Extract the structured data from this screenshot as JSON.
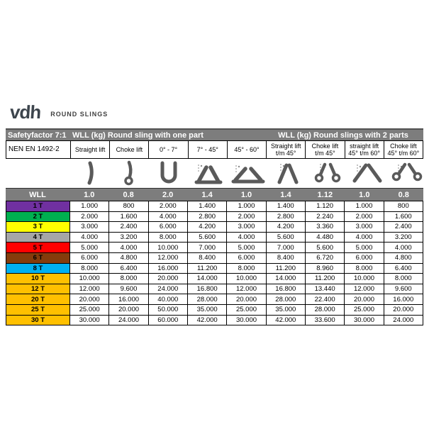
{
  "brand": {
    "logo": "vdh",
    "tagline": "ROUND SLINGS"
  },
  "table": {
    "top_header": {
      "safety": "Safetyfactor 7:1",
      "one_part": "WLL (kg) Round sling with one part",
      "two_parts": "WLL (kg) Round slings with 2 parts"
    },
    "standard": "NEN EN 1492-2",
    "columns": [
      {
        "line1": "Straight lift",
        "line2": ""
      },
      {
        "line1": "Choke lift",
        "line2": ""
      },
      {
        "line1": "0° - 7°",
        "line2": ""
      },
      {
        "line1": "7° - 45°",
        "line2": ""
      },
      {
        "line1": "45° - 60°",
        "line2": ""
      },
      {
        "line1": "Straight lift",
        "line2": "t/m 45°"
      },
      {
        "line1": "Choke lift",
        "line2": "t/m 45°"
      },
      {
        "line1": "straight lift",
        "line2": "45° t/m 60°"
      },
      {
        "line1": "Choke lift",
        "line2": "45° t/m 60°"
      }
    ],
    "icons": [
      "straight-lift-icon",
      "choke-lift-icon",
      "basket-0-7-icon",
      "basket-7-45-icon",
      "basket-45-60-icon",
      "two-part-straight-45-icon",
      "two-part-choke-45-icon",
      "two-part-straight-60-icon",
      "two-part-choke-60-icon"
    ],
    "wll_label": "WLL",
    "factors": [
      "1.0",
      "0.8",
      "2.0",
      "1.4",
      "1.0",
      "1.4",
      "1.12",
      "1.0",
      "0.8"
    ],
    "rows": [
      {
        "label": "1 T",
        "color": "#7030A0",
        "values": [
          "1.000",
          "800",
          "2.000",
          "1.400",
          "1.000",
          "1.400",
          "1.120",
          "1.000",
          "800"
        ]
      },
      {
        "label": "2 T",
        "color": "#00B050",
        "values": [
          "2.000",
          "1.600",
          "4.000",
          "2.800",
          "2.000",
          "2.800",
          "2.240",
          "2.000",
          "1.600"
        ]
      },
      {
        "label": "3 T",
        "color": "#FFFF00",
        "values": [
          "3.000",
          "2.400",
          "6.000",
          "4.200",
          "3.000",
          "4.200",
          "3.360",
          "3.000",
          "2.400"
        ]
      },
      {
        "label": "4 T",
        "color": "#A6A6A6",
        "values": [
          "4.000",
          "3.200",
          "8.000",
          "5.600",
          "4.000",
          "5.600",
          "4.480",
          "4.000",
          "3.200"
        ]
      },
      {
        "label": "5 T",
        "color": "#FF0000",
        "values": [
          "5.000",
          "4.000",
          "10.000",
          "7.000",
          "5.000",
          "7.000",
          "5.600",
          "5.000",
          "4.000"
        ]
      },
      {
        "label": "6 T",
        "color": "#843C0C",
        "values": [
          "6.000",
          "4.800",
          "12.000",
          "8.400",
          "6.000",
          "8.400",
          "6.720",
          "6.000",
          "4.800"
        ]
      },
      {
        "label": "8 T",
        "color": "#00B0F0",
        "values": [
          "8.000",
          "6.400",
          "16.000",
          "11.200",
          "8.000",
          "11.200",
          "8.960",
          "8.000",
          "6.400"
        ]
      },
      {
        "label": "10 T",
        "color": "#FFC000",
        "values": [
          "10.000",
          "8.000",
          "20.000",
          "14.000",
          "10.000",
          "14.000",
          "11.200",
          "10.000",
          "8.000"
        ]
      },
      {
        "label": "12 T",
        "color": "#FFC000",
        "values": [
          "12.000",
          "9.600",
          "24.000",
          "16.800",
          "12.000",
          "16.800",
          "13.440",
          "12.000",
          "9.600"
        ]
      },
      {
        "label": "20 T",
        "color": "#FFC000",
        "values": [
          "20.000",
          "16.000",
          "40.000",
          "28.000",
          "20.000",
          "28.000",
          "22.400",
          "20.000",
          "16.000"
        ]
      },
      {
        "label": "25 T",
        "color": "#FFC000",
        "values": [
          "25.000",
          "20.000",
          "50.000",
          "35.000",
          "25.000",
          "35.000",
          "28.000",
          "25.000",
          "20.000"
        ]
      },
      {
        "label": "30 T",
        "color": "#FFC000",
        "values": [
          "30.000",
          "24.000",
          "60.000",
          "42.000",
          "30.000",
          "42.000",
          "33.600",
          "30.000",
          "24.000"
        ]
      }
    ]
  },
  "colors": {
    "header_bar": "#7d7d7d",
    "header_text": "#ffffff",
    "logo": "#3d454d"
  }
}
